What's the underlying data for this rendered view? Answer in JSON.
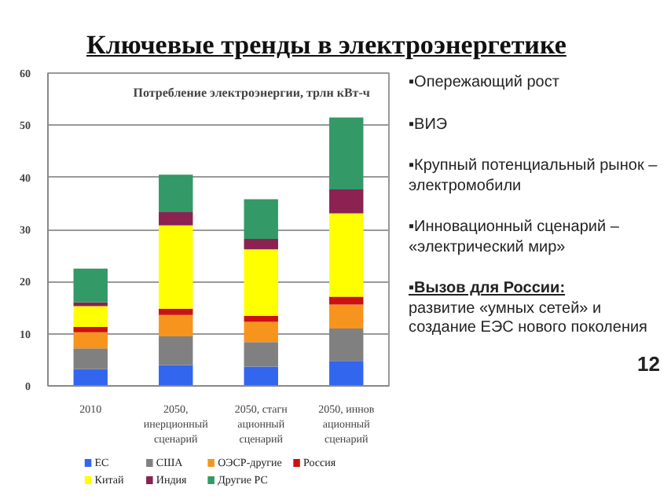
{
  "chart_data": {
    "type": "bar",
    "stacked": true,
    "title": "Ключевые тренды в электроэнергетике",
    "subtitle": "Потребление электроэнергии, трлн кВт-ч",
    "categories": [
      "2010",
      "2050, инерционный сценарий",
      "2050, стагнационный сценарий",
      "2050, инновационный сценарий"
    ],
    "series": [
      {
        "name": "ЕС",
        "color": "#3366ee",
        "values": [
          3.2,
          4.0,
          3.7,
          4.8
        ]
      },
      {
        "name": "США",
        "color": "#808080",
        "values": [
          4.0,
          5.5,
          4.7,
          6.2
        ]
      },
      {
        "name": "ОЭСР-другие",
        "color": "#f7941d",
        "values": [
          3.1,
          4.1,
          3.9,
          4.6
        ]
      },
      {
        "name": "Россия",
        "color": "#cc1111",
        "values": [
          1.0,
          1.2,
          1.1,
          1.5
        ]
      },
      {
        "name": "Китай",
        "color": "#ffff00",
        "values": [
          4.0,
          16.0,
          12.8,
          16.0
        ]
      },
      {
        "name": "Индия",
        "color": "#8b2252",
        "values": [
          0.7,
          2.5,
          2.0,
          4.6
        ]
      },
      {
        "name": "Другие РС",
        "color": "#339966",
        "values": [
          6.5,
          7.2,
          7.6,
          13.8
        ]
      }
    ],
    "ylim": [
      0,
      60
    ],
    "yticks": [
      0,
      10,
      20,
      30,
      40,
      50,
      60
    ],
    "grid": "y",
    "legend": "bottom",
    "annotations": [
      "▪Опережающий рост",
      "▪ВИЭ",
      "▪Крупный потенциальный рынок – электромобили",
      "▪Инновационный сценарий – «электрический мир»",
      "▪Вызов для России:",
      "развитие «умных сетей» и создание ЕЭС нового поколения",
      "12"
    ]
  }
}
